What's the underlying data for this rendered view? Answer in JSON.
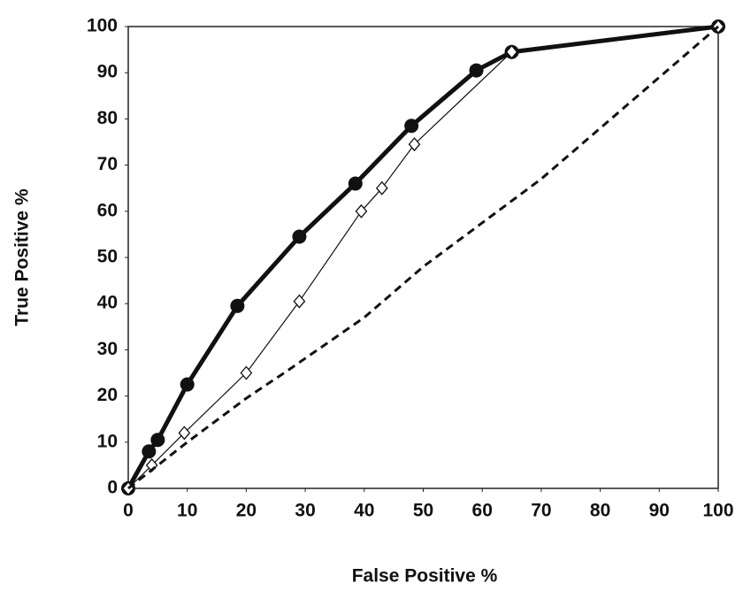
{
  "chart_data": {
    "type": "line",
    "x_label": "False Positive %",
    "y_label": "True Positive %",
    "xlim": [
      0,
      100
    ],
    "ylim": [
      0,
      100
    ],
    "xticks": [
      0,
      10,
      20,
      30,
      40,
      50,
      60,
      70,
      80,
      90,
      100
    ],
    "yticks": [
      0,
      10,
      20,
      30,
      40,
      50,
      60,
      70,
      80,
      90,
      100
    ],
    "grid": false,
    "series": [
      {
        "color": "#111111",
        "line_width": 5,
        "dashed": false,
        "marker": "circle",
        "x": [
          0,
          3.5,
          5,
          10,
          18.5,
          29,
          38.5,
          48,
          59,
          65,
          100
        ],
        "values": [
          0,
          8,
          10.5,
          22.5,
          39.5,
          54.5,
          66,
          78.5,
          90.5,
          94.5,
          100
        ]
      },
      {
        "color": "#111111",
        "line_width": 1.2,
        "dashed": false,
        "marker": "diamond",
        "x": [
          0,
          4,
          9.5,
          20,
          29,
          39.5,
          43,
          48.5,
          65,
          100
        ],
        "values": [
          0,
          5,
          12,
          25,
          40.5,
          60,
          65,
          74.5,
          94.5,
          100
        ]
      },
      {
        "color": "#111111",
        "line_width": 3,
        "dashed": true,
        "marker": "none",
        "x": [
          0,
          10,
          20,
          27,
          40,
          50,
          70,
          100
        ],
        "values": [
          0,
          10,
          19.5,
          25.5,
          37,
          48,
          67,
          100
        ]
      }
    ]
  }
}
